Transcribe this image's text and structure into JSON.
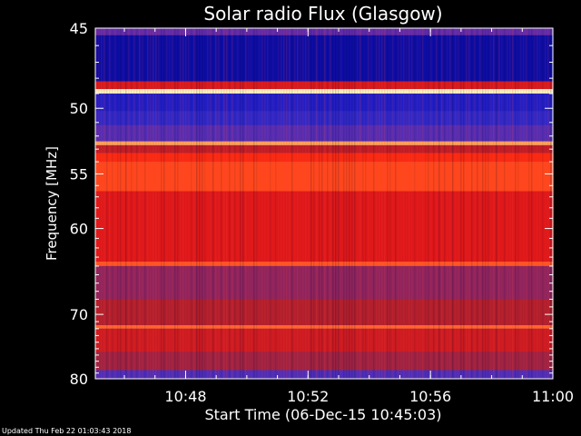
{
  "chart_data": {
    "type": "heatmap",
    "title": "Solar radio Flux (Glasgow)",
    "xlabel": "Start Time (06-Dec-15 10:45:03)",
    "ylabel": "Frequency [MHz]",
    "x_ticks": [
      "10:48",
      "10:52",
      "10:56",
      "11:00"
    ],
    "y_ticks": [
      45,
      50,
      55,
      60,
      70,
      80
    ],
    "x_range": [
      "10:45:03",
      "11:00:00"
    ],
    "y_range": [
      45,
      80
    ],
    "y_scale": "reciprocal",
    "colormap": [
      "#000033",
      "#1010c0",
      "#3a30c8",
      "#6a2aa0",
      "#a82030",
      "#e01818",
      "#ff3010",
      "#ff9040",
      "#fff0c0"
    ],
    "bands": [
      {
        "freq_from": 45.0,
        "freq_to": 45.4,
        "level": 0.35
      },
      {
        "freq_from": 45.4,
        "freq_to": 48.2,
        "level": 0.1
      },
      {
        "freq_from": 48.2,
        "freq_to": 48.7,
        "level": 0.6
      },
      {
        "freq_from": 48.7,
        "freq_to": 49.0,
        "level": 1.0
      },
      {
        "freq_from": 49.0,
        "freq_to": 50.2,
        "level": 0.18
      },
      {
        "freq_from": 50.2,
        "freq_to": 51.2,
        "level": 0.22
      },
      {
        "freq_from": 51.2,
        "freq_to": 52.4,
        "level": 0.32
      },
      {
        "freq_from": 52.4,
        "freq_to": 52.7,
        "level": 0.9
      },
      {
        "freq_from": 52.7,
        "freq_to": 53.3,
        "level": 0.55
      },
      {
        "freq_from": 53.3,
        "freq_to": 54.0,
        "level": 0.72
      },
      {
        "freq_from": 54.0,
        "freq_to": 56.5,
        "level": 0.78
      },
      {
        "freq_from": 56.5,
        "freq_to": 63.5,
        "level": 0.62
      },
      {
        "freq_from": 63.5,
        "freq_to": 64.0,
        "level": 0.8
      },
      {
        "freq_from": 64.0,
        "freq_to": 68.0,
        "level": 0.45
      },
      {
        "freq_from": 68.0,
        "freq_to": 71.5,
        "level": 0.52
      },
      {
        "freq_from": 71.5,
        "freq_to": 72.0,
        "level": 0.82
      },
      {
        "freq_from": 72.0,
        "freq_to": 75.5,
        "level": 0.58
      },
      {
        "freq_from": 75.5,
        "freq_to": 78.5,
        "level": 0.48
      },
      {
        "freq_from": 78.5,
        "freq_to": 80.0,
        "level": 0.3
      }
    ]
  },
  "footer": "Updated Thu Feb 22 01:03:43 2018"
}
